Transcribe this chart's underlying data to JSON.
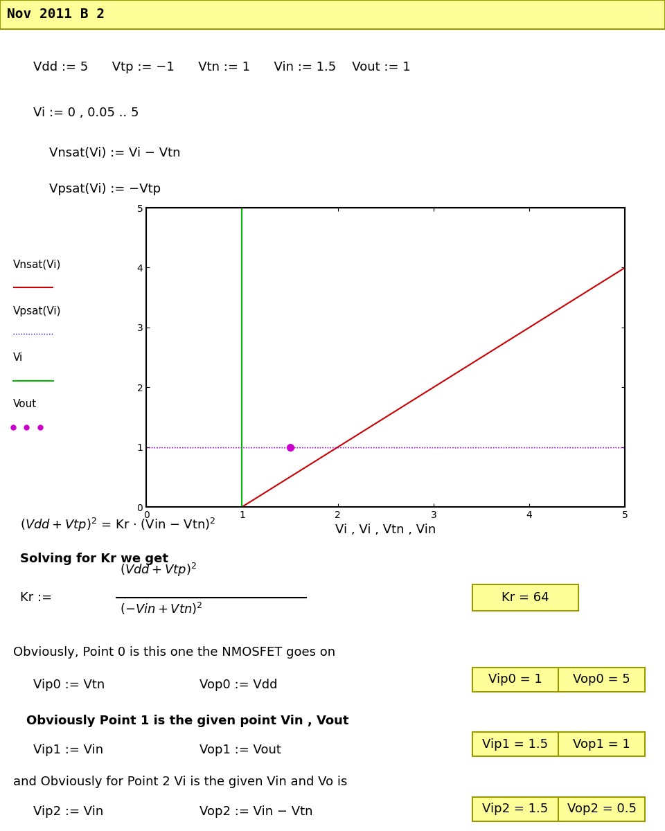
{
  "title": "Nov 2011 B 2",
  "title_bg": "#ffff99",
  "title_border": "#999900",
  "page_bg": "#ffffff",
  "line1": "Vdd := 5      Vtp := −1      Vtn := 1      Vin := 1.5    Vout := 1",
  "line2": "Vi := 0 , 0.05 .. 5",
  "line3": "    Vnsat(Vi) := Vi − Vtn",
  "line4": "    Vpsat(Vi) := −Vtp",
  "legend_labels": [
    "Vnsat(Vi)",
    "Vpsat(Vi)",
    "Vi",
    "Vout"
  ],
  "legend_line_styles": [
    "solid_red",
    "dotted_blue",
    "solid_green",
    "dots_magenta"
  ],
  "xlabel": "Vi , Vi , Vtn , Vin",
  "xlim": [
    0,
    5
  ],
  "ylim": [
    0,
    5
  ],
  "xticks": [
    0,
    1,
    2,
    3,
    4,
    5
  ],
  "yticks": [
    0,
    1,
    2,
    3,
    4,
    5
  ],
  "Vtn": 1,
  "Vtp": -1,
  "Vdd": 5,
  "Vin": 1.5,
  "Vout_val": 1,
  "vnsat_color": "#cc0000",
  "vpsat_color": "#0000cc",
  "vi_color": "#00bb00",
  "vout_color": "#cc00cc",
  "eq1": "(Vdd + Vtp)$^2$ = Kr · (Vin − Vtn)$^2$",
  "solving_text": "Solving for Kr we get",
  "kr_formula_num": "(Vdd + Vtp)$^2$",
  "kr_formula_den": "(−Vin + Vtn)$^2$",
  "kr_assign": "Kr :=",
  "kr_result_box": "Kr = 64",
  "obviously0": "Obviously, Point 0 is this one the NMOSFET goes on",
  "vip0_def": "Vip0 := Vtn",
  "vop0_def": "Vop0 := Vdd",
  "vip0_box": "Vip0 = 1",
  "vop0_box": "Vop0 = 5",
  "obviously1": "Obviously Point 1 is the given point Vin , Vout",
  "vip1_def": "Vip1 := Vin",
  "vop1_def": "Vop1 := Vout",
  "vip1_box": "Vip1 = 1.5",
  "vop1_box": "Vop1 = 1",
  "obviously2": "and Obviously for Point 2 Vi is the given Vin and Vo is",
  "vip2_def": "Vip2 := Vin",
  "vop2_def": "Vop2 := Vin − Vtn",
  "vip2_box": "Vip2 = 1.5",
  "vop2_box": "Vop2 = 0.5",
  "box_bg": "#ffff99",
  "box_border": "#999900",
  "font_size_title": 14,
  "font_size_body": 13,
  "font_size_eq": 13,
  "magenta_dot_x": 1.5,
  "magenta_dot_y": 1.0
}
